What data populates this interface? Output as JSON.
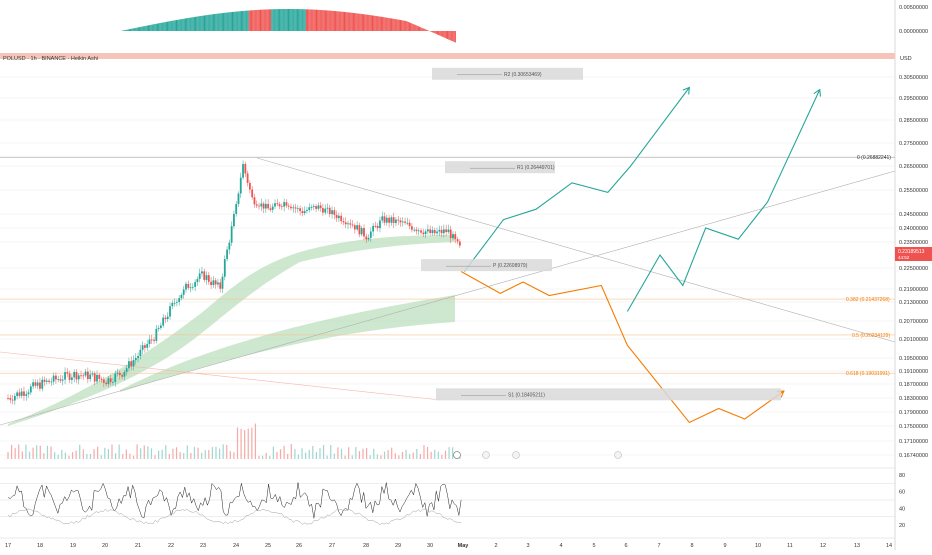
{
  "symbol_line": "POLUSD · 1h · BINANCE · Heikin Ashi",
  "currency": "USD",
  "colors": {
    "up": "#26a69a",
    "down": "#ef5350",
    "orange": "#f57c00",
    "teal_path": "#26a69a",
    "ribbon": "#a5d6a7",
    "box": "#d9d9d9",
    "pale_band": "#f7c4b9",
    "grid": "#e9e9e9"
  },
  "price_axis": {
    "ticks": [
      "0.30500000",
      "0.29500000",
      "0.28500000",
      "0.27500000",
      "0.26500000",
      "0.25500000",
      "0.24500000",
      "0.24000000",
      "0.23500000",
      "0.22500000",
      "0.21900000",
      "0.21300000",
      "0.20700000",
      "0.20100000",
      "0.19500000",
      "0.19100000",
      "0.18700000",
      "0.18300000",
      "0.17900000",
      "0.17500000",
      "0.17100000",
      "0.16740000"
    ],
    "current_price": "0.23189513",
    "current_sub": "44:52"
  },
  "oscillator_axis": {
    "ticks": [
      "0.00500000",
      "0.00000000"
    ]
  },
  "rsi_axis": {
    "ticks": [
      "80",
      "60",
      "40",
      "20"
    ]
  },
  "date_axis": {
    "ticks": [
      "17",
      "18",
      "19",
      "20",
      "21",
      "22",
      "23",
      "24",
      "25",
      "26",
      "27",
      "28",
      "29",
      "30",
      "May",
      "2",
      "3",
      "4",
      "5",
      "6",
      "7",
      "8",
      "9",
      "10",
      "11",
      "12",
      "13",
      "14"
    ]
  },
  "levels": {
    "r2": "R2 (0.30653469)",
    "r1": "R1 (0.26449701)",
    "p": "P (0.22608979)",
    "s1": "S1 (0.18405211)",
    "fib0": "0 (0.26882241)",
    "fib382": "0.382 (0.21437268)",
    "fib5": "0.5 (0.20234129)",
    "fib618": "0.618 (0.19031991)"
  },
  "chart_data": {
    "type": "line",
    "title": "POLUSD · 1h · BINANCE · Heikin Ashi",
    "x_categories": [
      "17",
      "18",
      "19",
      "20",
      "21",
      "22",
      "23",
      "24",
      "25",
      "26",
      "27",
      "28",
      "29",
      "30",
      "May",
      "2",
      "3",
      "4",
      "5",
      "6",
      "7",
      "8",
      "9",
      "10",
      "11",
      "12",
      "13",
      "14"
    ],
    "y_unit": "USD",
    "price_series": {
      "name": "",
      "x_day_index": [
        0,
        0.5,
        1,
        1.5,
        2,
        2.5,
        3,
        3.5,
        4,
        4.5,
        5,
        5.5,
        6,
        6.5,
        7,
        7.2,
        7.5,
        8,
        8.5,
        9,
        9.5,
        10,
        10.5,
        11,
        11.5,
        12,
        12.5,
        13,
        13.5,
        13.9
      ],
      "y": [
        0.183,
        0.185,
        0.187,
        0.1885,
        0.19,
        0.1895,
        0.188,
        0.1905,
        0.196,
        0.202,
        0.211,
        0.22,
        0.223,
        0.219,
        0.248,
        0.266,
        0.251,
        0.247,
        0.25,
        0.246,
        0.248,
        0.245,
        0.242,
        0.237,
        0.243,
        0.242,
        0.24,
        0.238,
        0.239,
        0.232
      ]
    },
    "projection_teal_1": {
      "x_day_index": [
        14,
        15.2,
        16.2,
        17.3,
        18.4,
        19.1,
        20.9
      ],
      "y": [
        0.224,
        0.243,
        0.247,
        0.258,
        0.254,
        0.265,
        0.3
      ]
    },
    "projection_orange": {
      "x_day_index": [
        13.9,
        15.1,
        15.8,
        16.6,
        18.2,
        19,
        20.9,
        21.8,
        22.6,
        23.8
      ],
      "y": [
        0.224,
        0.217,
        0.221,
        0.216,
        0.22,
        0.199,
        0.176,
        0.18,
        0.177,
        0.185
      ]
    },
    "projection_teal_2": {
      "x_day_index": [
        19,
        20,
        20.7,
        21.4,
        22.4,
        23.3,
        24.9
      ],
      "y": [
        0.21,
        0.23,
        0.22,
        0.24,
        0.236,
        0.25,
        0.299
      ]
    },
    "pivot_levels": {
      "R2": 0.30653469,
      "R1": 0.26449701,
      "P": 0.22608979,
      "S1": 0.18405211
    },
    "fib_levels": {
      "0": 0.26882241,
      "0.382": 0.21437268,
      "0.5": 0.20234129,
      "0.618": 0.19031991
    },
    "ylim": [
      0.1674,
      0.307
    ],
    "rsi_ticks": [
      80,
      60,
      40,
      20
    ]
  }
}
